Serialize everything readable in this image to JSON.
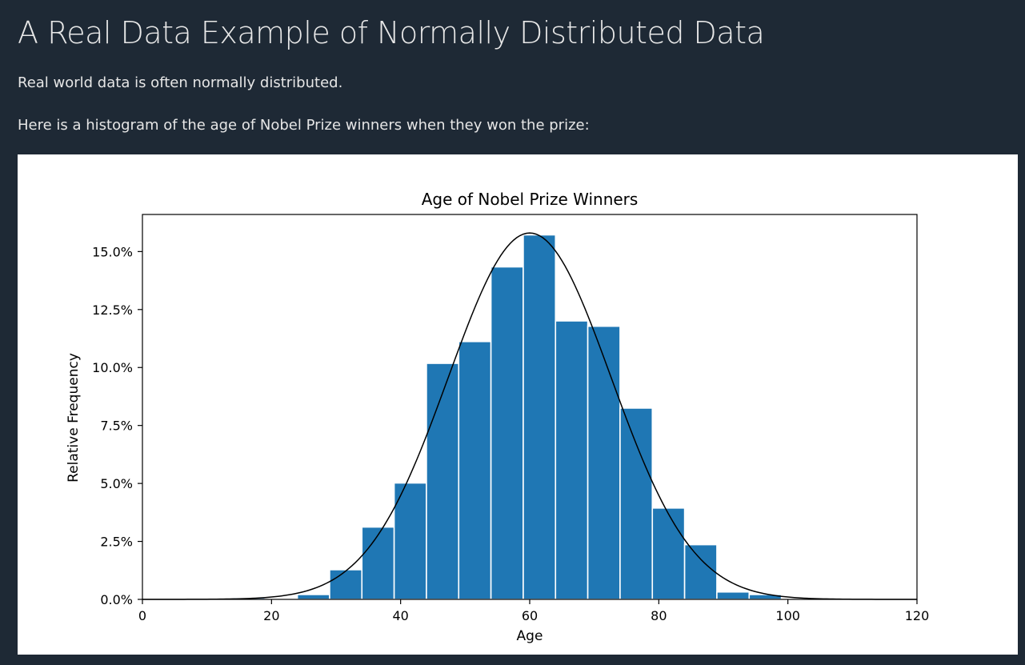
{
  "page": {
    "title": "A Real Data Example of Normally Distributed Data",
    "paragraphs": [
      "Real world data is often normally distributed.",
      "Here is a histogram of the age of Nobel Prize winners when they won the prize:"
    ]
  },
  "colors": {
    "background": "#1e2935",
    "bar": "#1f77b4",
    "curve": "#000000"
  },
  "chart_data": {
    "type": "bar",
    "title": "Age of Nobel Prize Winners",
    "xlabel": "Age",
    "ylabel": "Relative Frequency",
    "xlim": [
      0,
      120
    ],
    "ylim": [
      0,
      0.166
    ],
    "xticks": [
      0,
      20,
      40,
      60,
      80,
      100,
      120
    ],
    "yticks": [
      0,
      0.025,
      0.05,
      0.075,
      0.1,
      0.125,
      0.15
    ],
    "ytick_labels": [
      "0.0%",
      "2.5%",
      "5.0%",
      "7.5%",
      "10.0%",
      "12.5%",
      "15.0%"
    ],
    "xtick_labels": [
      "0",
      "20",
      "40",
      "60",
      "80",
      "100",
      "120"
    ],
    "bins": [
      {
        "start": 14,
        "end": 19,
        "value": 0.0007
      },
      {
        "start": 19,
        "end": 24,
        "value": 0.0003
      },
      {
        "start": 24,
        "end": 29,
        "value": 0.0021
      },
      {
        "start": 29,
        "end": 34,
        "value": 0.0128
      },
      {
        "start": 34,
        "end": 39,
        "value": 0.0312
      },
      {
        "start": 39,
        "end": 44,
        "value": 0.0502
      },
      {
        "start": 44,
        "end": 49,
        "value": 0.1018
      },
      {
        "start": 49,
        "end": 54,
        "value": 0.1112
      },
      {
        "start": 54,
        "end": 59,
        "value": 0.1434
      },
      {
        "start": 59,
        "end": 64,
        "value": 0.1572
      },
      {
        "start": 64,
        "end": 69,
        "value": 0.1201
      },
      {
        "start": 69,
        "end": 74,
        "value": 0.1178
      },
      {
        "start": 74,
        "end": 79,
        "value": 0.0825
      },
      {
        "start": 79,
        "end": 84,
        "value": 0.0394
      },
      {
        "start": 84,
        "end": 89,
        "value": 0.0236
      },
      {
        "start": 89,
        "end": 94,
        "value": 0.0032
      },
      {
        "start": 94,
        "end": 99,
        "value": 0.0021
      }
    ],
    "normal_curve": {
      "mean": 60,
      "std": 12.6,
      "peak": 0.158
    },
    "grid": false,
    "legend": "none"
  }
}
